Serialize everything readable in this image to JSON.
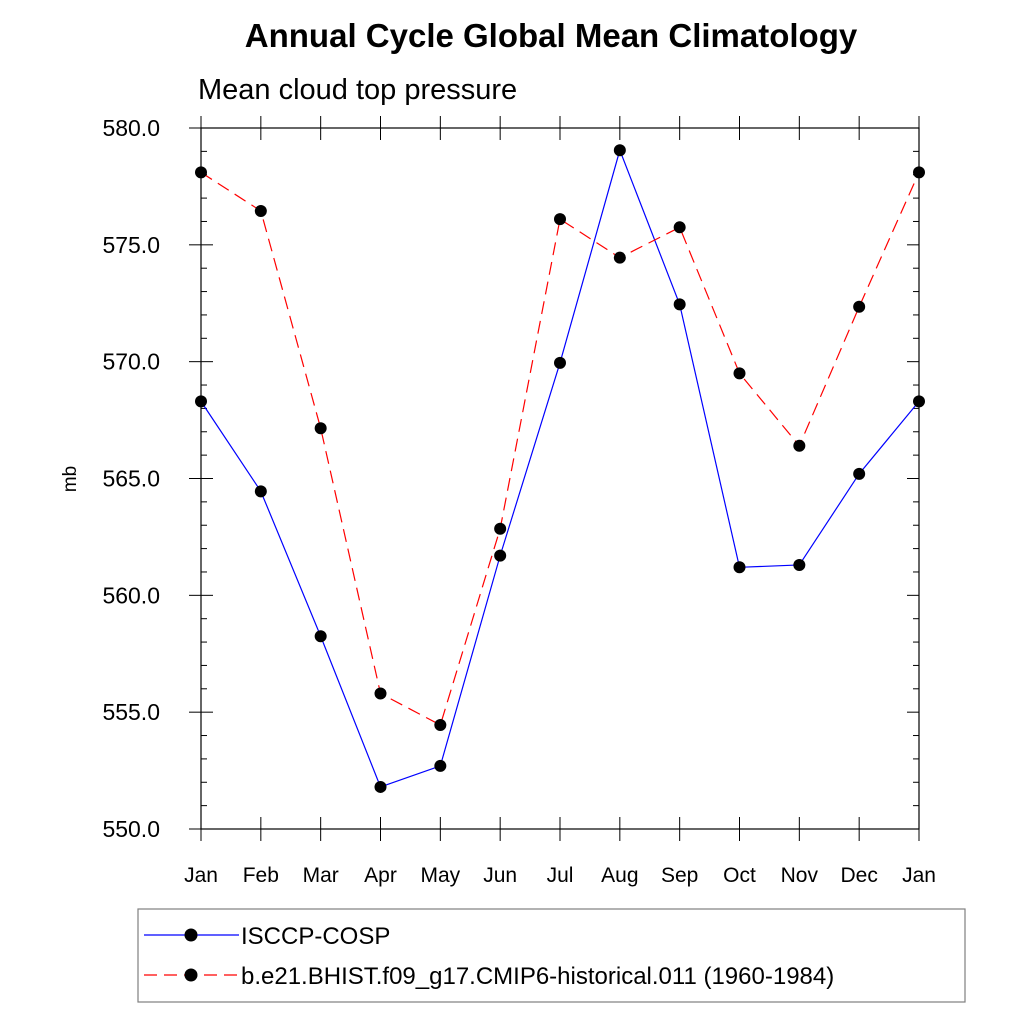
{
  "chart_data": {
    "type": "line",
    "title": "Annual Cycle Global Mean Climatology",
    "subtitle": "Mean cloud top pressure",
    "xlabel": "",
    "ylabel": "mb",
    "categories": [
      "Jan",
      "Feb",
      "Mar",
      "Apr",
      "May",
      "Jun",
      "Jul",
      "Aug",
      "Sep",
      "Oct",
      "Nov",
      "Dec",
      "Jan"
    ],
    "ylim": [
      550.0,
      580.0
    ],
    "yticks": [
      "550.0",
      "555.0",
      "560.0",
      "565.0",
      "570.0",
      "575.0",
      "580.0"
    ],
    "grid": false,
    "legend_position": "bottom",
    "series": [
      {
        "name": "ISCCP-COSP",
        "color": "#0000ff",
        "dash": "solid",
        "marker": "filled-circle",
        "values": [
          568.3,
          564.45,
          558.25,
          551.8,
          552.7,
          561.7,
          569.95,
          579.05,
          572.45,
          561.2,
          561.3,
          565.2,
          568.3
        ]
      },
      {
        "name": "b.e21.BHIST.f09_g17.CMIP6-historical.011 (1960-1984)",
        "color": "#ff0000",
        "dash": "dashed",
        "marker": "filled-circle",
        "values": [
          578.1,
          576.45,
          567.15,
          555.8,
          554.45,
          562.85,
          576.1,
          574.45,
          575.75,
          569.5,
          566.4,
          572.35,
          578.1
        ]
      }
    ]
  }
}
